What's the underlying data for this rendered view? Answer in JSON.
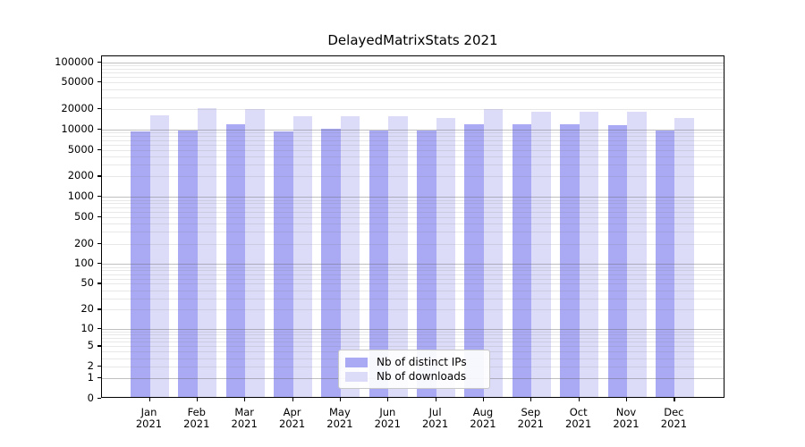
{
  "chart_data": {
    "type": "bar",
    "title": "DelayedMatrixStats 2021",
    "categories": [
      "Jan",
      "Feb",
      "Mar",
      "Apr",
      "May",
      "Jun",
      "Jul",
      "Aug",
      "Sep",
      "Oct",
      "Nov",
      "Dec"
    ],
    "category_sublabel": "2021",
    "series": [
      {
        "name": "Nb of distinct IPs",
        "color": "#a9a9f4",
        "values": [
          8800,
          9200,
          11300,
          8900,
          9600,
          9200,
          9000,
          11300,
          11100,
          11300,
          10800,
          9000
        ]
      },
      {
        "name": "Nb of downloads",
        "color": "#dcdcf8",
        "values": [
          15400,
          19400,
          18800,
          14800,
          14800,
          14600,
          13900,
          18800,
          17500,
          17500,
          17500,
          13900
        ]
      }
    ],
    "xlabel": "",
    "ylabel": "",
    "y_scale": "log10(value+1)",
    "y_ticks": [
      0,
      1,
      2,
      5,
      10,
      20,
      50,
      100,
      200,
      500,
      1000,
      2000,
      5000,
      10000,
      20000,
      50000,
      100000
    ],
    "ylim": [
      0,
      122000
    ],
    "grid": {
      "minor": "on",
      "major": "on"
    },
    "legend_position": "bottom-center",
    "colors": {
      "background": "#ffffff",
      "axis": "#000000",
      "grid_major": "#bdbdbd",
      "grid_minor": "#e9e9e9"
    }
  }
}
